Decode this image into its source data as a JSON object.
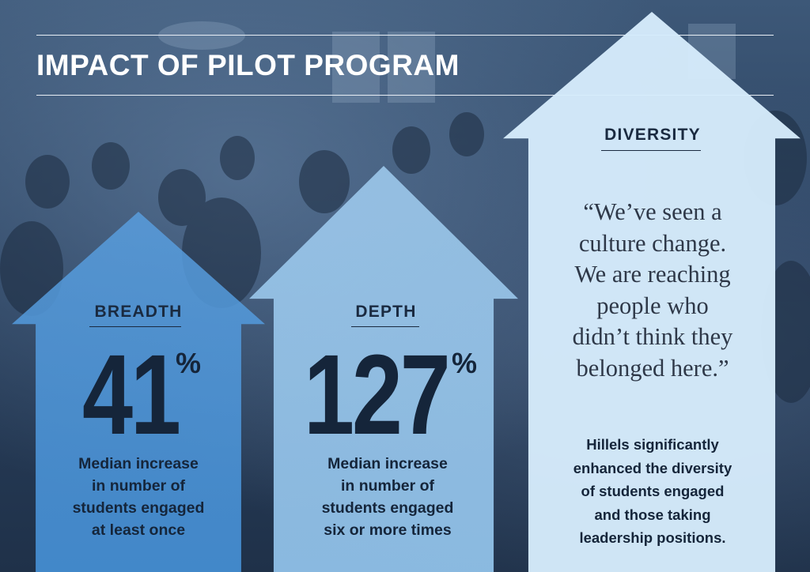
{
  "title": "IMPACT OF PILOT PROGRAM",
  "breadth": {
    "heading": "BREADTH",
    "value": "41",
    "unit": "%",
    "description_lines": [
      "Median increase",
      "in number of",
      "students engaged",
      "at least once"
    ]
  },
  "depth": {
    "heading": "DEPTH",
    "value": "127",
    "unit": "%",
    "description_lines": [
      "Median increase",
      "in number of",
      "students engaged",
      "six or more times"
    ]
  },
  "diversity": {
    "heading": "DIVERSITY",
    "quote_lines": [
      "“We’ve seen a",
      "culture change.",
      "We are reaching",
      "people who",
      "didn’t think they",
      "belonged here.”"
    ],
    "description_lines": [
      "Hillels significantly",
      "enhanced the diversity",
      "of students engaged",
      "and those taking",
      "leadership positions."
    ]
  },
  "colors": {
    "breadth_arrow": "#5aa0e1",
    "depth_arrow": "#a5d2f5",
    "diversity_arrow": "#d6ecfc",
    "text_dark": "#15253a"
  }
}
